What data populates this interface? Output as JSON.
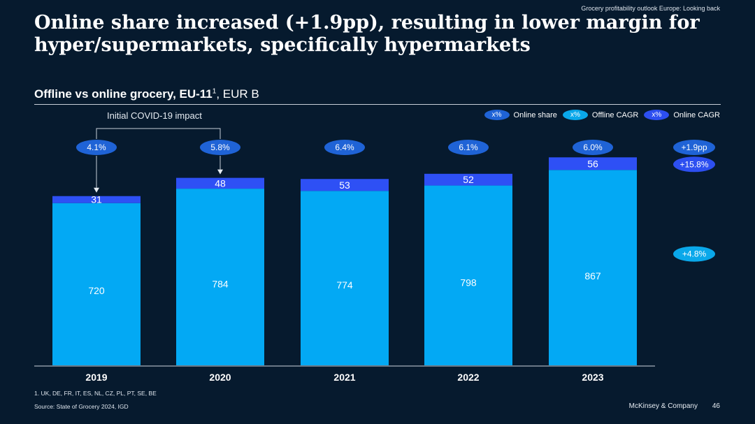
{
  "header": {
    "top_note": "Grocery profitability outlook Europe: Looking back",
    "title": "Online share increased (+1.9pp), resulting in lower margin for hyper/supermarkets, specifically hypermarkets"
  },
  "subtitle": {
    "bold": "Offline vs online grocery, EU-11",
    "sup": "1",
    "rest": ", EUR B"
  },
  "legend": {
    "pill_label": "x%",
    "items": [
      {
        "label": "Online share",
        "color": "#1f63d6"
      },
      {
        "label": "Offline CAGR",
        "color": "#0aa8ea"
      },
      {
        "label": "Online CAGR",
        "color": "#2d4ff0"
      }
    ]
  },
  "annotation": {
    "covid": "Initial COVID-19 impact"
  },
  "colors": {
    "offline": "#03a9f4",
    "online": "#2e50f5",
    "share_pill": "#1f63d6",
    "offline_cagr": "#0aa8ea",
    "online_cagr": "#2d4ff0",
    "background": "#061a2e"
  },
  "chart_data": {
    "type": "bar",
    "stacked": true,
    "title": "Offline vs online grocery, EU-11, EUR B",
    "categories": [
      "2019",
      "2020",
      "2021",
      "2022",
      "2023"
    ],
    "series": [
      {
        "name": "Offline",
        "values": [
          720,
          784,
          774,
          798,
          867
        ]
      },
      {
        "name": "Online",
        "values": [
          31,
          48,
          53,
          52,
          56
        ]
      }
    ],
    "online_share": [
      "4.1%",
      "5.8%",
      "6.4%",
      "6.1%",
      "6.0%"
    ],
    "summary": {
      "online_share_change": "+1.9pp",
      "online_cagr": "+15.8%",
      "offline_cagr": "+4.8%"
    },
    "ylim": [
      0,
      930
    ]
  },
  "footer": {
    "footnote": "1.    UK, DE, FR, IT, ES, NL, CZ, PL, PT, SE, BE",
    "source": "Source: State of Grocery 2024, IGD",
    "brand": "McKinsey & Company",
    "page": "46"
  }
}
